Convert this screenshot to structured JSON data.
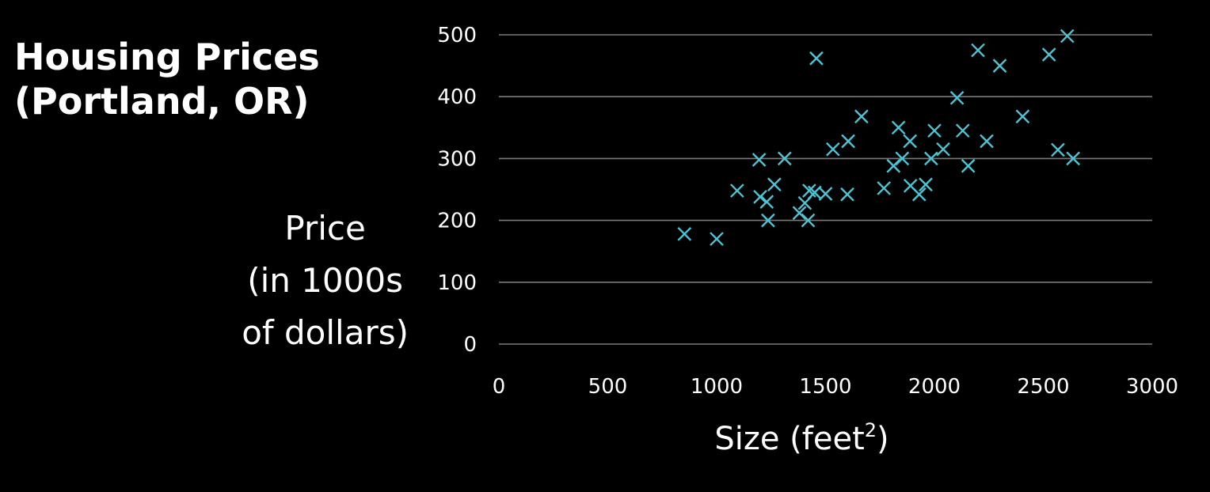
{
  "title_lines": [
    "Housing Prices",
    "(Portland, OR)"
  ],
  "ylabel_lines": [
    "Price",
    "(in 1000s",
    "of dollars)"
  ],
  "colors": {
    "background": "#000000",
    "text": "#ffffff",
    "grid": "#7a7a7a",
    "marker": "#4cc4d4"
  },
  "chart_data": {
    "type": "scatter",
    "title": "Housing Prices (Portland, OR)",
    "xlabel": "Size (feet²)",
    "xlabel_base": "Size (feet",
    "xlabel_sup": "2",
    "xlabel_tail": ")",
    "ylabel": "Price (in 1000s of dollars)",
    "xlim": [
      0,
      3000
    ],
    "ylim": [
      0,
      500
    ],
    "x_ticks": [
      0,
      500,
      1000,
      1500,
      2000,
      2500,
      3000
    ],
    "y_ticks": [
      0,
      100,
      200,
      300,
      400,
      500
    ],
    "grid": "horizontal",
    "marker": "x",
    "series": [
      {
        "points": [
          [
            852,
            178
          ],
          [
            1000,
            170
          ],
          [
            1094,
            248
          ],
          [
            1195,
            298
          ],
          [
            1200,
            238
          ],
          [
            1230,
            230
          ],
          [
            1236,
            200
          ],
          [
            1265,
            258
          ],
          [
            1312,
            300
          ],
          [
            1380,
            212
          ],
          [
            1405,
            228
          ],
          [
            1420,
            200
          ],
          [
            1425,
            248
          ],
          [
            1450,
            245
          ],
          [
            1458,
            462
          ],
          [
            1500,
            243
          ],
          [
            1534,
            315
          ],
          [
            1600,
            242
          ],
          [
            1604,
            328
          ],
          [
            1665,
            368
          ],
          [
            1768,
            252
          ],
          [
            1812,
            288
          ],
          [
            1835,
            350
          ],
          [
            1852,
            300
          ],
          [
            1888,
            328
          ],
          [
            1890,
            256
          ],
          [
            1930,
            242
          ],
          [
            1960,
            258
          ],
          [
            1985,
            300
          ],
          [
            2000,
            345
          ],
          [
            2040,
            315
          ],
          [
            2104,
            398
          ],
          [
            2130,
            345
          ],
          [
            2155,
            288
          ],
          [
            2200,
            475
          ],
          [
            2240,
            328
          ],
          [
            2300,
            450
          ],
          [
            2405,
            368
          ],
          [
            2526,
            468
          ],
          [
            2567,
            314
          ],
          [
            2610,
            498
          ],
          [
            2637,
            300
          ]
        ]
      }
    ]
  }
}
